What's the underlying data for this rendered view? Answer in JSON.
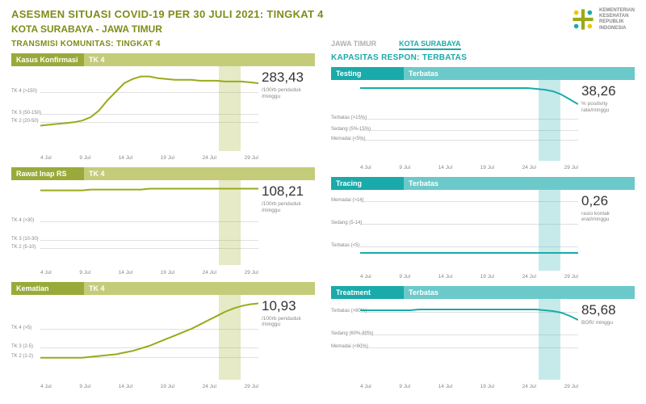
{
  "title_line1": "ASESMEN SITUASI COVID-19 PER 30 JULI 2021: TINGKAT 4",
  "title_line2": "KOTA SURABAYA - JAWA TIMUR",
  "title_color": "#808c1a",
  "logo_text": [
    "KEMENTERIAN",
    "KESEHATAN",
    "REPUBLIK",
    "INDONESIA"
  ],
  "logo_text_color": "#888888",
  "logo_colors": {
    "green": "#9aaa1a",
    "teal": "#1aaaaa",
    "yellow": "#e8c800"
  },
  "left": {
    "header": "TRANSMISI KOMUNITAS: TINGKAT 4",
    "header_color": "#808c1a",
    "x_ticks": [
      "4 Jul",
      "9 Jul",
      "14 Jul",
      "19 Jul",
      "24 Jul",
      "29 Jul"
    ],
    "hd_bg_a": "#9aaa3a",
    "hd_bg_b": "#c4cc7a",
    "line_color": "#9aaa1a",
    "shade_color": "rgba(154,170,26,0.25)",
    "grid_color": "#e0e0e0",
    "panels": [
      {
        "title_a": "Kasus Konfirmasi",
        "title_b": "TK  4",
        "value": "283,43",
        "unit": "/100rb penduduk /minggu",
        "y_labels": [
          {
            "t": "TK 4 (>150)",
            "p": 0.3
          },
          {
            "t": "TK 3 (50-150)",
            "p": 0.56
          },
          {
            "t": "TK 2 (20-50)",
            "p": 0.66
          }
        ],
        "hlines": [
          0.3,
          0.56,
          0.66
        ],
        "series": [
          70,
          69,
          68,
          67,
          66,
          64,
          60,
          52,
          40,
          30,
          20,
          15,
          12,
          12,
          14,
          15,
          16,
          16,
          16,
          17,
          17,
          17,
          18,
          18,
          18,
          19,
          20
        ],
        "ylim": [
          0,
          100
        ],
        "invert": true,
        "shade": {
          "from": 0.82,
          "to": 0.92
        }
      },
      {
        "title_a": "Rawat Inap RS",
        "title_b": "TK  4",
        "value": "108,21",
        "unit": "/100rb penduduk /minggu",
        "y_labels": [
          {
            "t": "TK 4 (>30)",
            "p": 0.48
          },
          {
            "t": "TK 3 (10-30)",
            "p": 0.7
          },
          {
            "t": "TK 2 (5-10)",
            "p": 0.8
          }
        ],
        "hlines": [
          0.48,
          0.7,
          0.8
        ],
        "series": [
          12,
          12,
          12,
          12,
          12,
          12,
          11,
          11,
          11,
          11,
          11,
          11,
          11,
          10,
          10,
          10,
          10,
          10,
          10,
          10,
          10,
          10,
          10,
          10,
          10,
          10,
          10
        ],
        "ylim": [
          0,
          100
        ],
        "invert": true,
        "shade": {
          "from": 0.82,
          "to": 0.92
        }
      },
      {
        "title_a": "Kematian",
        "title_b": "TK  4",
        "value": "10,93",
        "unit": "/100rb penduduk /minggu",
        "y_labels": [
          {
            "t": "TK 4 (>5)",
            "p": 0.4
          },
          {
            "t": "TK 3 (2-5)",
            "p": 0.62
          },
          {
            "t": "TK 2 (1-2)",
            "p": 0.74
          }
        ],
        "hlines": [
          0.4,
          0.62,
          0.74
        ],
        "series": [
          74,
          74,
          74,
          74,
          74,
          74,
          73,
          72,
          71,
          70,
          68,
          66,
          63,
          60,
          56,
          52,
          48,
          44,
          40,
          35,
          30,
          25,
          20,
          16,
          13,
          11,
          10
        ],
        "ylim": [
          0,
          100
        ],
        "invert": true,
        "shade": {
          "from": 0.82,
          "to": 0.92
        }
      }
    ]
  },
  "right": {
    "tabs": [
      "JAWA TIMUR",
      "KOTA SURABAYA"
    ],
    "tab_active": 1,
    "tab_color_off": "#b0b0b0",
    "tab_color_on": "#1aaaaa",
    "header": "KAPASITAS RESPON: TERBATAS",
    "header_color": "#1aaaaa",
    "x_ticks": [
      "4 Jul",
      "9 Jul",
      "14 Jul",
      "19 Jul",
      "24 Jul",
      "29 Jul"
    ],
    "hd_bg_a": "#1aaaaa",
    "hd_bg_b": "#6cc9c9",
    "line_color": "#1aaaaa",
    "shade_color": "rgba(26,170,170,0.25)",
    "grid_color": "#e0e0e0",
    "panels": [
      {
        "title_a": "Testing",
        "title_b": "Terbatas",
        "value": "38,26",
        "unit": "% positivity rate/minggu",
        "y_labels": [
          {
            "t": "Terbatas (>15%)",
            "p": 0.48
          },
          {
            "t": "Sedang (5%-15%)",
            "p": 0.62
          },
          {
            "t": "Memadai (<5%)",
            "p": 0.74
          }
        ],
        "hlines": [
          0.48,
          0.62,
          0.74
        ],
        "series": [
          10,
          10,
          10,
          10,
          10,
          10,
          10,
          10,
          10,
          10,
          10,
          10,
          10,
          10,
          10,
          10,
          10,
          10,
          10,
          10,
          10,
          11,
          12,
          14,
          18,
          24,
          30
        ],
        "ylim": [
          0,
          100
        ],
        "invert": true,
        "shade": {
          "from": 0.82,
          "to": 0.92
        }
      },
      {
        "title_a": "Tracing",
        "title_b": "Terbatas",
        "value": "0,26",
        "unit": "rasio kontak erat/minggu",
        "y_labels": [
          {
            "t": "Memadai (>14)",
            "p": 0.14
          },
          {
            "t": "Sedang (5-14)",
            "p": 0.42
          },
          {
            "t": "Terbatas (<5)",
            "p": 0.7
          }
        ],
        "hlines": [
          0.14,
          0.42,
          0.7
        ],
        "series": [
          78,
          78,
          78,
          78,
          78,
          78,
          78,
          78,
          78,
          78,
          78,
          78,
          78,
          78,
          78,
          78,
          78,
          78,
          78,
          78,
          78,
          78,
          78,
          78,
          78,
          78,
          78
        ],
        "ylim": [
          0,
          100
        ],
        "invert": true,
        "shade": {
          "from": 0.82,
          "to": 0.92
        }
      },
      {
        "title_a": "Treatment",
        "title_b": "Terbatas",
        "value": "85,68",
        "unit": "BOR/ minggu",
        "y_labels": [
          {
            "t": "Terbatas (>80%)",
            "p": 0.16
          },
          {
            "t": "Sedang (60%-80%)",
            "p": 0.44
          },
          {
            "t": "Memadai (<60%)",
            "p": 0.6
          }
        ],
        "hlines": [
          0.16,
          0.44,
          0.6
        ],
        "series": [
          14,
          14,
          14,
          14,
          14,
          14,
          14,
          13,
          13,
          13,
          13,
          13,
          13,
          13,
          13,
          13,
          13,
          13,
          13,
          13,
          13,
          13,
          14,
          15,
          17,
          21,
          26
        ],
        "ylim": [
          0,
          100
        ],
        "invert": true,
        "shade": {
          "from": 0.82,
          "to": 0.92
        }
      }
    ]
  }
}
